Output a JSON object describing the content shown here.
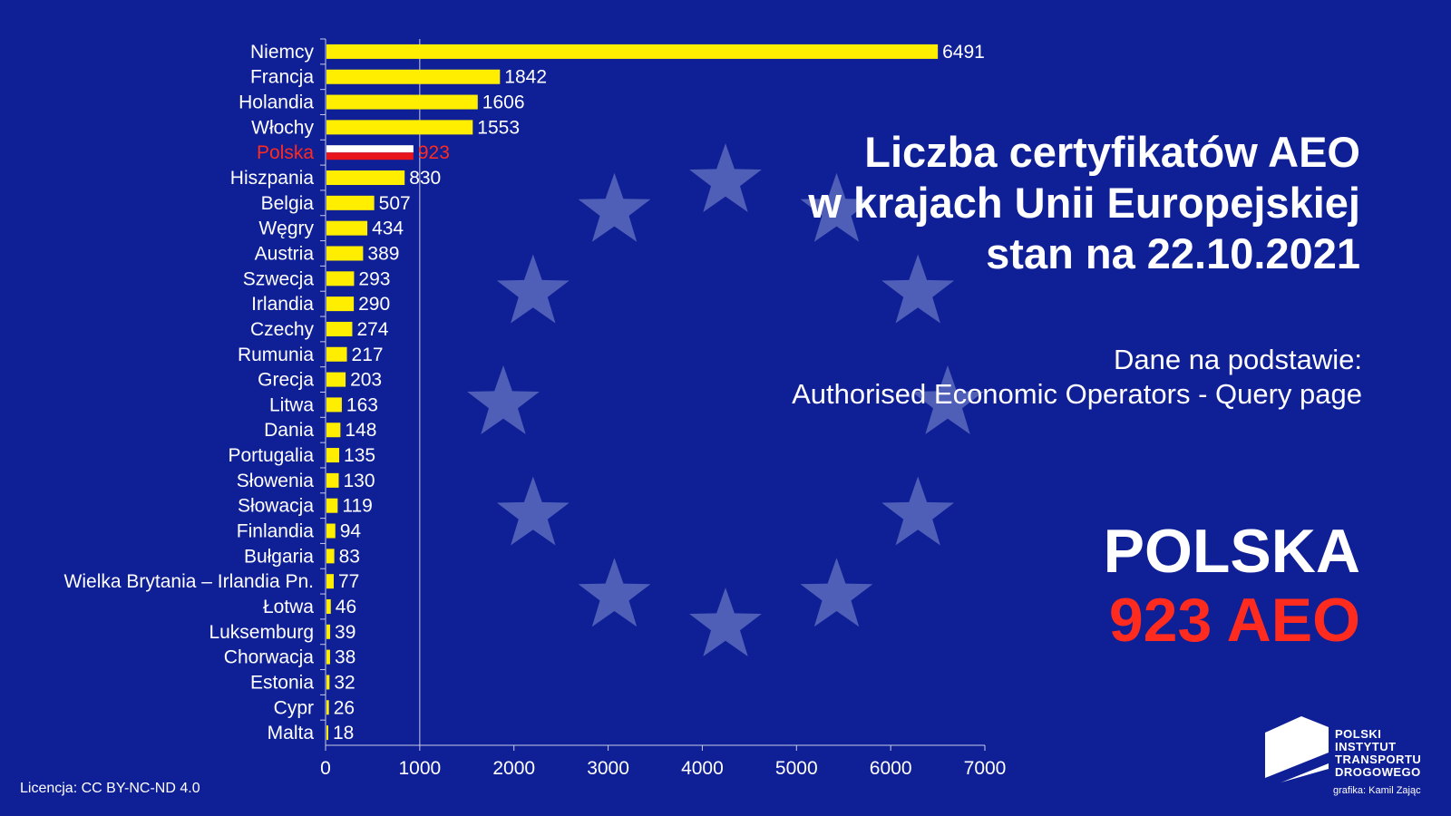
{
  "title": {
    "line1": "Liczba certyfikatów AEO",
    "line2": "w krajach Unii Europejskiej",
    "line3": "stan na 22.10.2021"
  },
  "source": {
    "line1": "Dane na podstawie:",
    "line2": "Authorised Economic Operators - Query page"
  },
  "highlight": {
    "country": "POLSKA",
    "value": "923 AEO"
  },
  "footer": {
    "license": "Licencja: CC BY-NC-ND 4.0",
    "logo_text": [
      "POLSKI",
      "INSTYTUT",
      "TRANSPORTU",
      "DROGOWEGO"
    ],
    "credit": "grafika: Kamil Zając"
  },
  "colors": {
    "background": "#0f1f96",
    "bar": "#ffee00",
    "highlight_red": "#ff2b1f",
    "star": "#4f5fb8",
    "text": "#ffffff"
  },
  "chart_data": {
    "type": "bar",
    "orientation": "horizontal",
    "categories": [
      "Niemcy",
      "Francja",
      "Holandia",
      "Włochy",
      "Polska",
      "Hiszpania",
      "Belgia",
      "Węgry",
      "Austria",
      "Szwecja",
      "Irlandia",
      "Czechy",
      "Rumunia",
      "Grecja",
      "Litwa",
      "Dania",
      "Portugalia",
      "Słowenia",
      "Słowacja",
      "Finlandia",
      "Bułgaria",
      "Wielka Brytania – Irlandia Pn.",
      "Łotwa",
      "Luksemburg",
      "Chorwacja",
      "Estonia",
      "Cypr",
      "Malta"
    ],
    "values": [
      6491,
      1842,
      1606,
      1553,
      923,
      830,
      507,
      434,
      389,
      293,
      290,
      274,
      217,
      203,
      163,
      148,
      135,
      130,
      119,
      94,
      83,
      77,
      46,
      39,
      38,
      32,
      26,
      18
    ],
    "highlight_category": "Polska",
    "xlim": [
      0,
      7000
    ],
    "xticks": [
      0,
      1000,
      2000,
      3000,
      4000,
      5000,
      6000,
      7000
    ],
    "gridlines": [
      1000
    ],
    "data_labels": true,
    "title": "",
    "xlabel": "",
    "ylabel": ""
  }
}
